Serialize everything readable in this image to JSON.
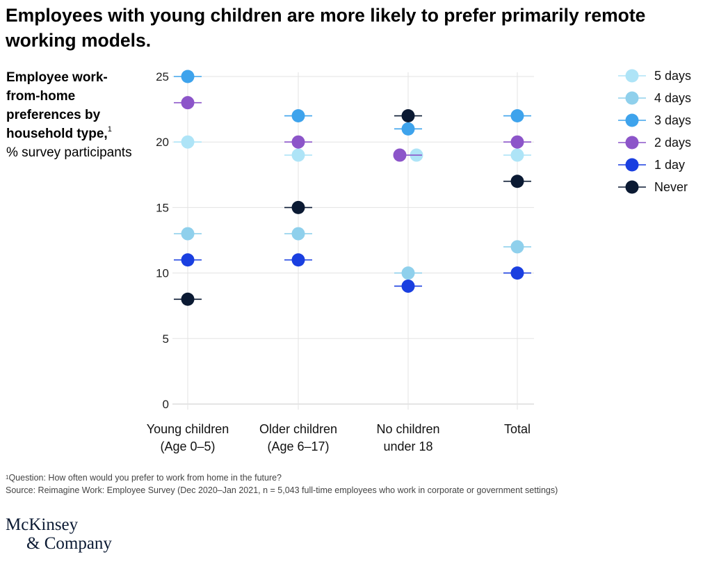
{
  "title": "Employees with young children are more likely to prefer primarily remote working models.",
  "side_label": {
    "strong": "Employee work-from-home preferences by household type,",
    "sup": "1",
    "rest": "% survey participants"
  },
  "footnote": {
    "sup": "1",
    "text": "Question: How often would you prefer to work from home in the future?",
    "source": "Source: Reimagine Work: Employee Survey (Dec 2020–Jan 2021, n = 5,043 full-time employees who work in corporate or government settings)"
  },
  "logo": {
    "line1": "McKinsey",
    "line2": "& Company"
  },
  "chart_data": {
    "type": "scatter",
    "categories": [
      [
        "Young children",
        "(Age 0–5)"
      ],
      [
        "Older children",
        "(Age 6–17)"
      ],
      [
        "No children",
        "under 18"
      ],
      [
        "Total"
      ]
    ],
    "ylim": [
      0,
      25
    ],
    "yticks": [
      0,
      5,
      10,
      15,
      20,
      25
    ],
    "grid": true,
    "legend_position": "top-right",
    "series": [
      {
        "name": "5 days",
        "color": "#aee4f7",
        "values": [
          20,
          19,
          19,
          19
        ]
      },
      {
        "name": "4 days",
        "color": "#8fd0ec",
        "values": [
          13,
          13,
          10,
          12
        ]
      },
      {
        "name": "3 days",
        "color": "#3ea3ec",
        "values": [
          25,
          22,
          21,
          22
        ]
      },
      {
        "name": "2 days",
        "color": "#8c55c9",
        "values": [
          23,
          20,
          19,
          20
        ]
      },
      {
        "name": "1 day",
        "color": "#1a3fe0",
        "values": [
          11,
          11,
          9,
          10
        ]
      },
      {
        "name": "Never",
        "color": "#0b1a33",
        "values": [
          8,
          15,
          22,
          17
        ]
      }
    ]
  }
}
